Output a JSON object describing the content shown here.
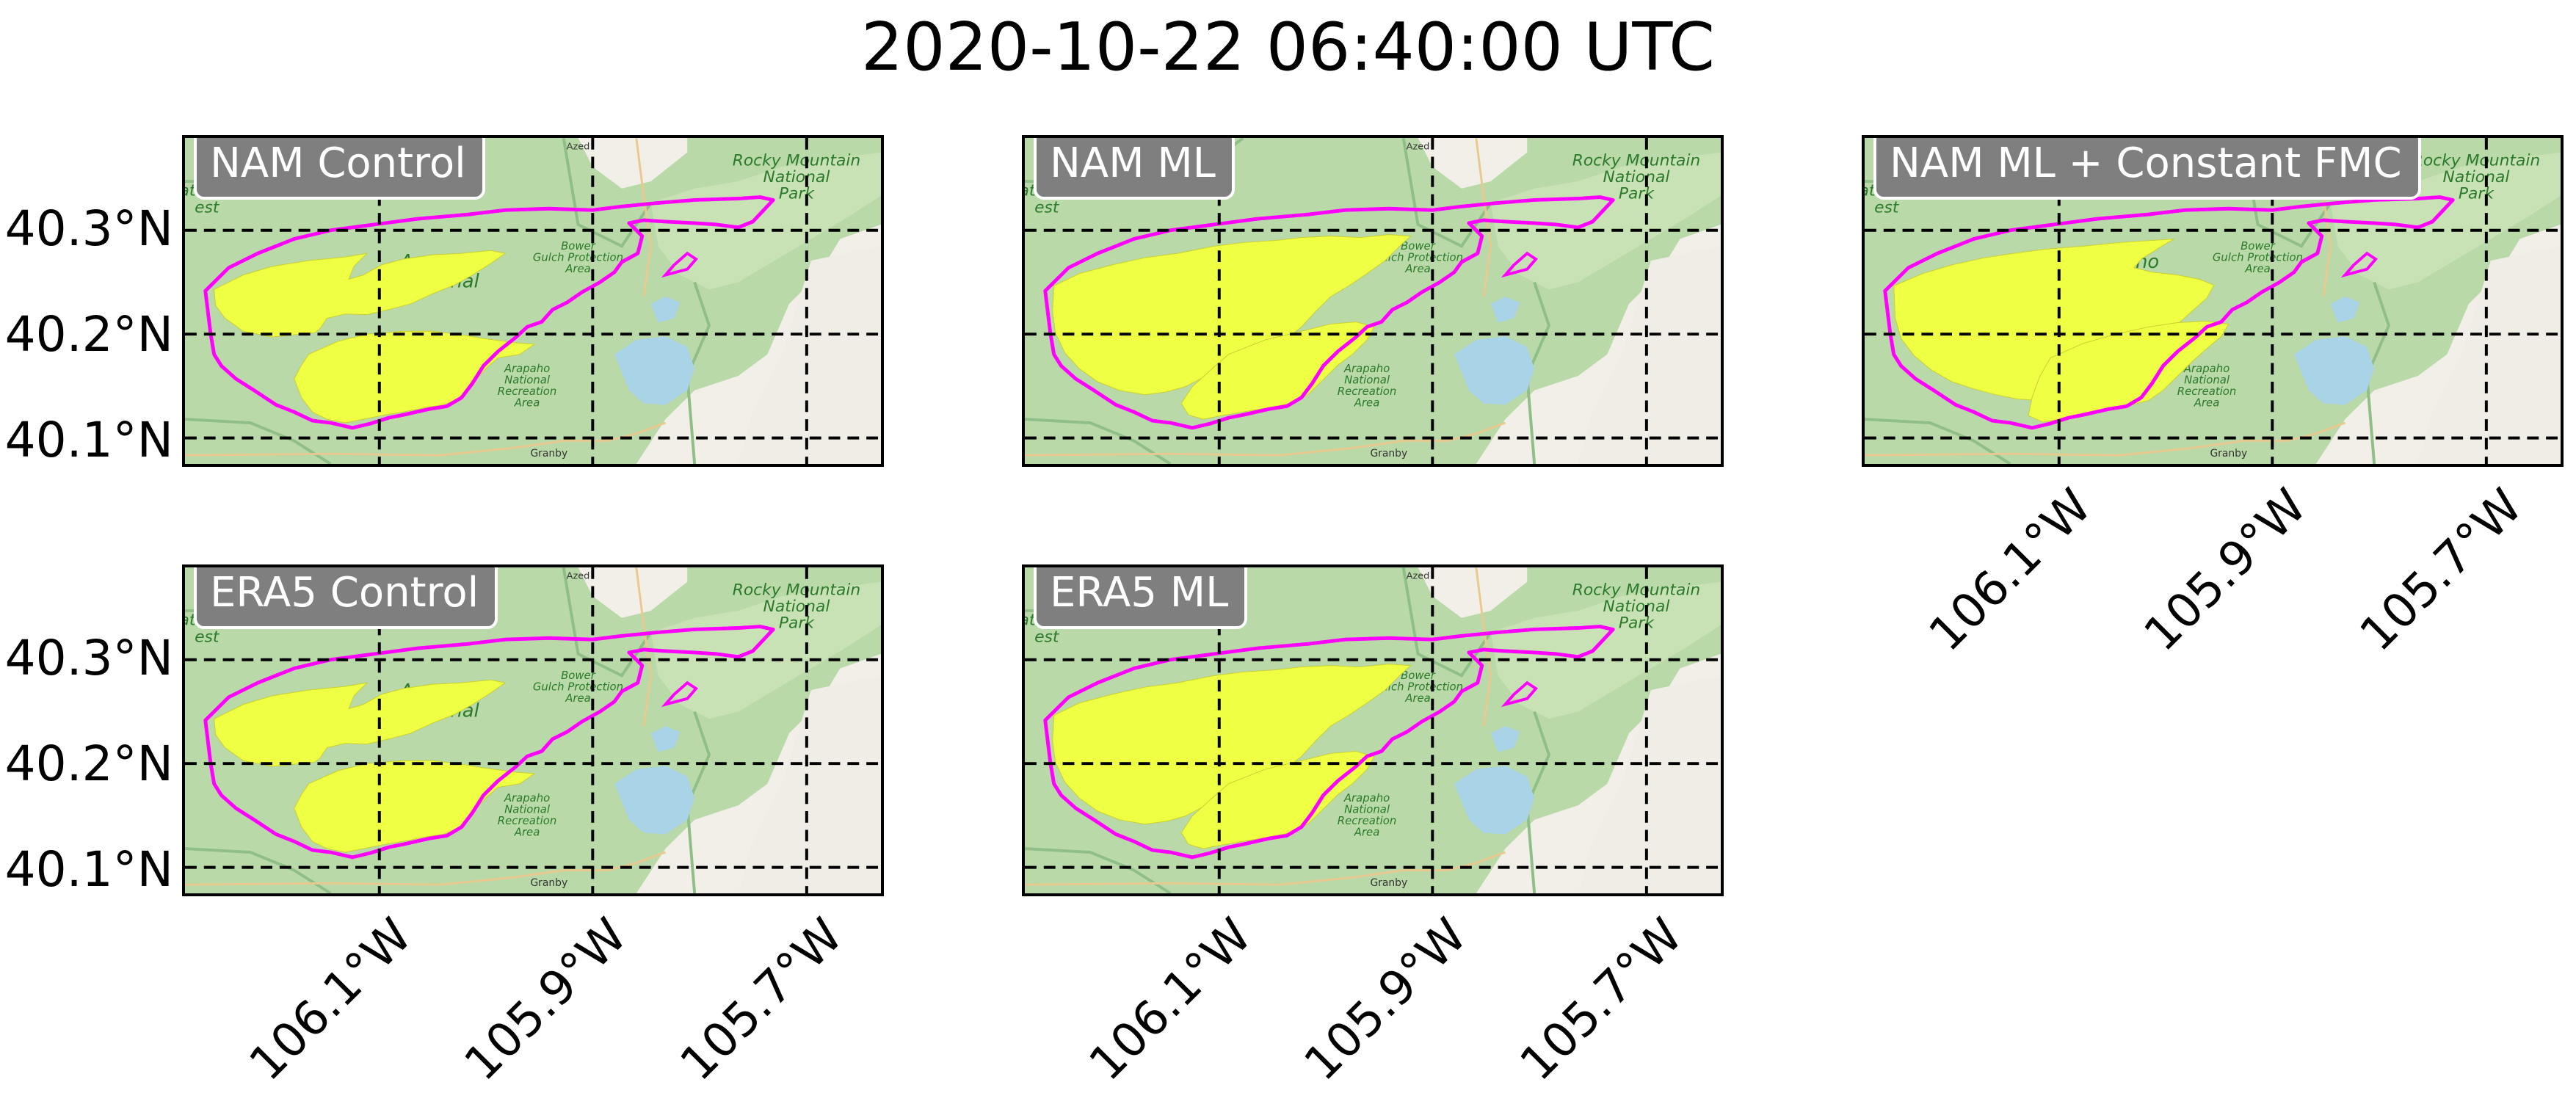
{
  "title": "2020-10-22 06:40:00 UTC",
  "panels": [
    {
      "id": "nam-control",
      "label": "NAM Control",
      "row": 0,
      "col": 0,
      "show_lat": true,
      "show_lon": false,
      "variant": 0
    },
    {
      "id": "nam-ml",
      "label": "NAM ML",
      "row": 0,
      "col": 1,
      "show_lat": false,
      "show_lon": false,
      "variant": 1
    },
    {
      "id": "nam-ml-constant-fmc",
      "label": "NAM ML + Constant FMC",
      "row": 0,
      "col": 2,
      "show_lat": false,
      "show_lon": true,
      "variant": 2
    },
    {
      "id": "era5-control",
      "label": "ERA5 Control",
      "row": 1,
      "col": 0,
      "show_lat": true,
      "show_lon": true,
      "variant": 0
    },
    {
      "id": "era5-ml",
      "label": "ERA5 ML",
      "row": 1,
      "col": 1,
      "show_lat": false,
      "show_lon": true,
      "variant": 1
    }
  ],
  "lat_labels": [
    "40.3°N",
    "40.2°N",
    "40.1°N"
  ],
  "lon_labels": [
    "106.1°W",
    "105.9°W",
    "105.7°W"
  ],
  "map_labels": {
    "park": [
      "Rocky Mountain",
      "National",
      "Park"
    ],
    "forest": [
      "Arapaho",
      "National"
    ],
    "gulch": [
      "Bower",
      "Gulch Protection",
      "Area"
    ],
    "recreation": [
      "Arapaho",
      "National",
      "Recreation",
      "Area"
    ],
    "west_forest": [
      "ational",
      "est"
    ],
    "town": "Granby",
    "town_small": "Azed"
  },
  "colors": {
    "burned_area": "#eeff44",
    "perimeter": "#ff00ff",
    "forest": "#b9d9a8",
    "water": "#a9d3e6",
    "gridline": "#000000",
    "label_box": "#7f7f7f"
  }
}
